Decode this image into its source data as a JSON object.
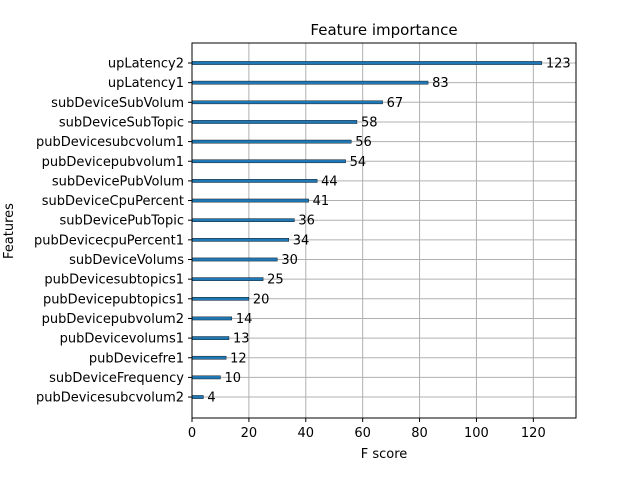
{
  "chart_data": {
    "type": "bar",
    "orientation": "horizontal",
    "title": "Feature importance",
    "xlabel": "F score",
    "ylabel": "Features",
    "xlim": [
      0,
      135
    ],
    "xticks": [
      0,
      20,
      40,
      60,
      80,
      100,
      120
    ],
    "grid": true,
    "bar_color": "#1f77b4",
    "categories": [
      "upLatency2",
      "upLatency1",
      "subDeviceSubVolum",
      "subDeviceSubTopic",
      "pubDevicesubcvolum1",
      "pubDevicepubvolum1",
      "subDevicePubVolum",
      "subDeviceCpuPercent",
      "subDevicePubTopic",
      "pubDevicecpuPercent1",
      "subDeviceVolums",
      "pubDevicesubtopics1",
      "pubDevicepubtopics1",
      "pubDevicepubvolum2",
      "pubDevicevolums1",
      "pubDevicefre1",
      "subDeviceFrequency",
      "pubDevicesubcvolum2"
    ],
    "values": [
      123,
      83,
      67,
      58,
      56,
      54,
      44,
      41,
      36,
      34,
      30,
      25,
      20,
      14,
      13,
      12,
      10,
      4
    ]
  }
}
